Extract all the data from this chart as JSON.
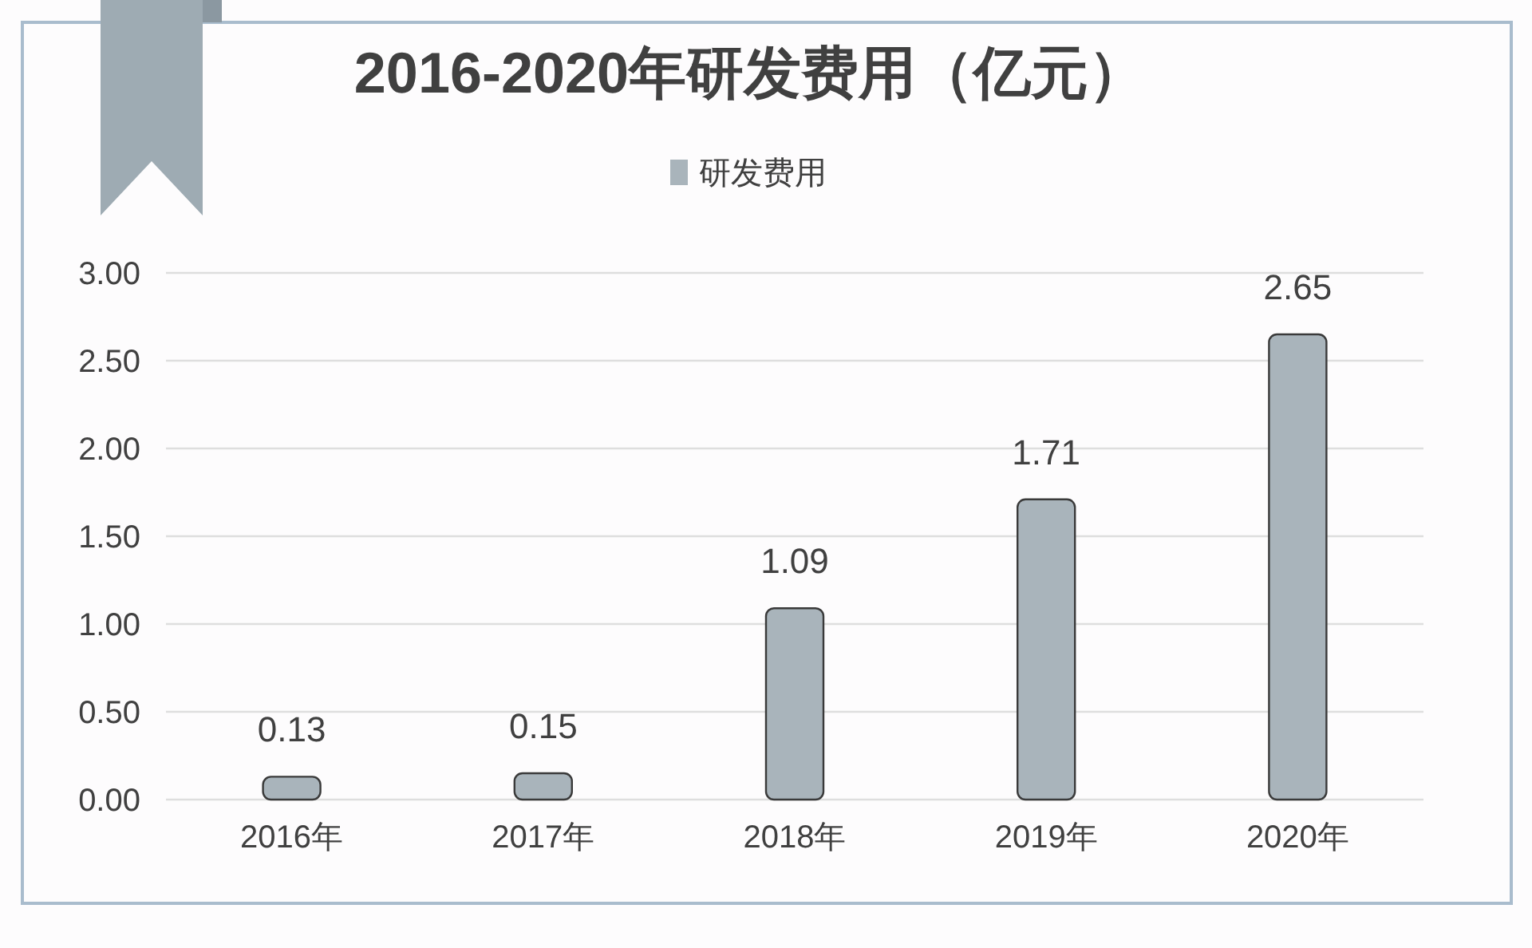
{
  "chart_data": {
    "type": "bar",
    "title": "2016-2020年研发费用（亿元）",
    "categories": [
      "2016年",
      "2017年",
      "2018年",
      "2019年",
      "2020年"
    ],
    "series": [
      {
        "name": "研发费用",
        "color": "#a9b4bb",
        "values": [
          0.13,
          0.15,
          1.09,
          1.71,
          2.65
        ]
      }
    ],
    "ylim": [
      0,
      3
    ],
    "yticks": [
      {
        "value": 0,
        "label": "0.00"
      },
      {
        "value": 0.5,
        "label": "0.50"
      },
      {
        "value": 1,
        "label": "1.00"
      },
      {
        "value": 1.5,
        "label": "1.50"
      },
      {
        "value": 2,
        "label": "2.00"
      },
      {
        "value": 2.5,
        "label": "2.50"
      },
      {
        "value": 3,
        "label": "3.00"
      }
    ],
    "grid": "y",
    "legend": "top",
    "data_labels": true
  }
}
